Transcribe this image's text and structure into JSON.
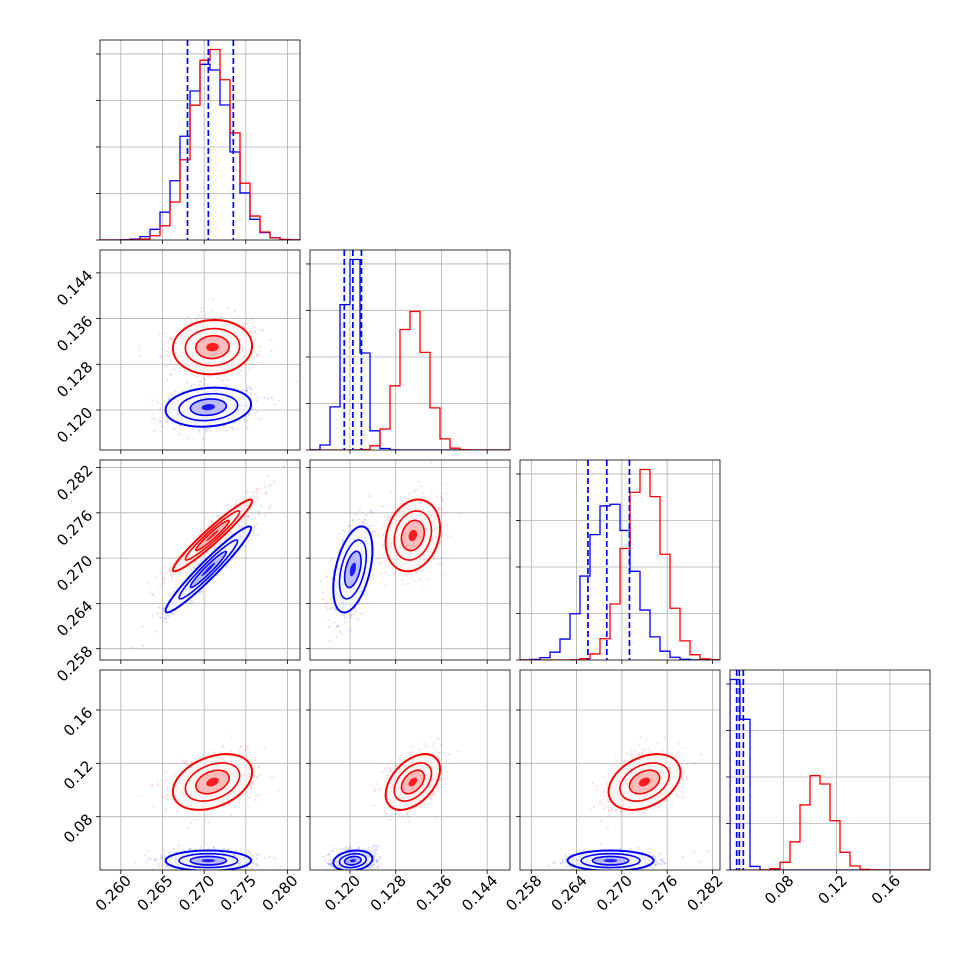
{
  "chart_data": {
    "type": "scatter",
    "title": "",
    "grid": true,
    "colors": {
      "series_a": "#0000ff",
      "series_b": "#ff0000"
    },
    "parameters": [
      {
        "index": 0,
        "range": [
          0.2575,
          0.2815
        ],
        "ticks": [
          0.26,
          0.265,
          0.27,
          0.275,
          0.28
        ],
        "tick_labels": [
          "0.260",
          "0.265",
          "0.270",
          "0.275",
          "0.280"
        ],
        "series_a": {
          "mean": 0.2705,
          "sd": 0.0027,
          "quantiles": [
            0.268,
            0.2705,
            0.2735
          ]
        },
        "series_b": {
          "mean": 0.271,
          "sd": 0.0025
        }
      },
      {
        "index": 1,
        "range": [
          0.113,
          0.148
        ],
        "ticks": [
          0.12,
          0.128,
          0.136,
          0.144
        ],
        "tick_labels": [
          "0.120",
          "0.128",
          "0.136",
          "0.144"
        ],
        "series_a": {
          "mean": 0.1205,
          "sd": 0.0018,
          "quantiles": [
            0.119,
            0.1205,
            0.122
          ]
        },
        "series_b": {
          "mean": 0.131,
          "sd": 0.0025
        }
      },
      {
        "index": 2,
        "range": [
          0.2565,
          0.283
        ],
        "ticks": [
          0.258,
          0.264,
          0.27,
          0.276,
          0.282
        ],
        "tick_labels": [
          "0.258",
          "0.264",
          "0.270",
          "0.276",
          "0.282"
        ],
        "series_a": {
          "mean": 0.2685,
          "sd": 0.003,
          "quantiles": [
            0.2655,
            0.268,
            0.271
          ]
        },
        "series_b": {
          "mean": 0.273,
          "sd": 0.0025
        }
      },
      {
        "index": 3,
        "range": [
          0.04,
          0.19
        ],
        "ticks": [
          0.08,
          0.12,
          0.16
        ],
        "tick_labels": [
          "0.08",
          "0.12",
          "0.16"
        ],
        "series_a": {
          "mean": 0.047,
          "sd": 0.004,
          "quantiles": [
            0.045,
            0.047,
            0.05
          ]
        },
        "series_b": {
          "mean": 0.106,
          "sd": 0.011
        }
      }
    ],
    "correlations": {
      "series_a": {
        "1_0": 0.15,
        "2_0": 0.96,
        "2_1": 0.45,
        "3_0": 0.0,
        "3_1": 0.2,
        "3_2": 0.0
      },
      "series_b": {
        "1_0": 0.05,
        "2_0": 0.96,
        "2_1": 0.2,
        "3_0": 0.35,
        "3_1": 0.45,
        "3_2": 0.35
      }
    },
    "contour_levels": [
      0.3,
      0.8,
      1.3,
      1.9
    ]
  }
}
